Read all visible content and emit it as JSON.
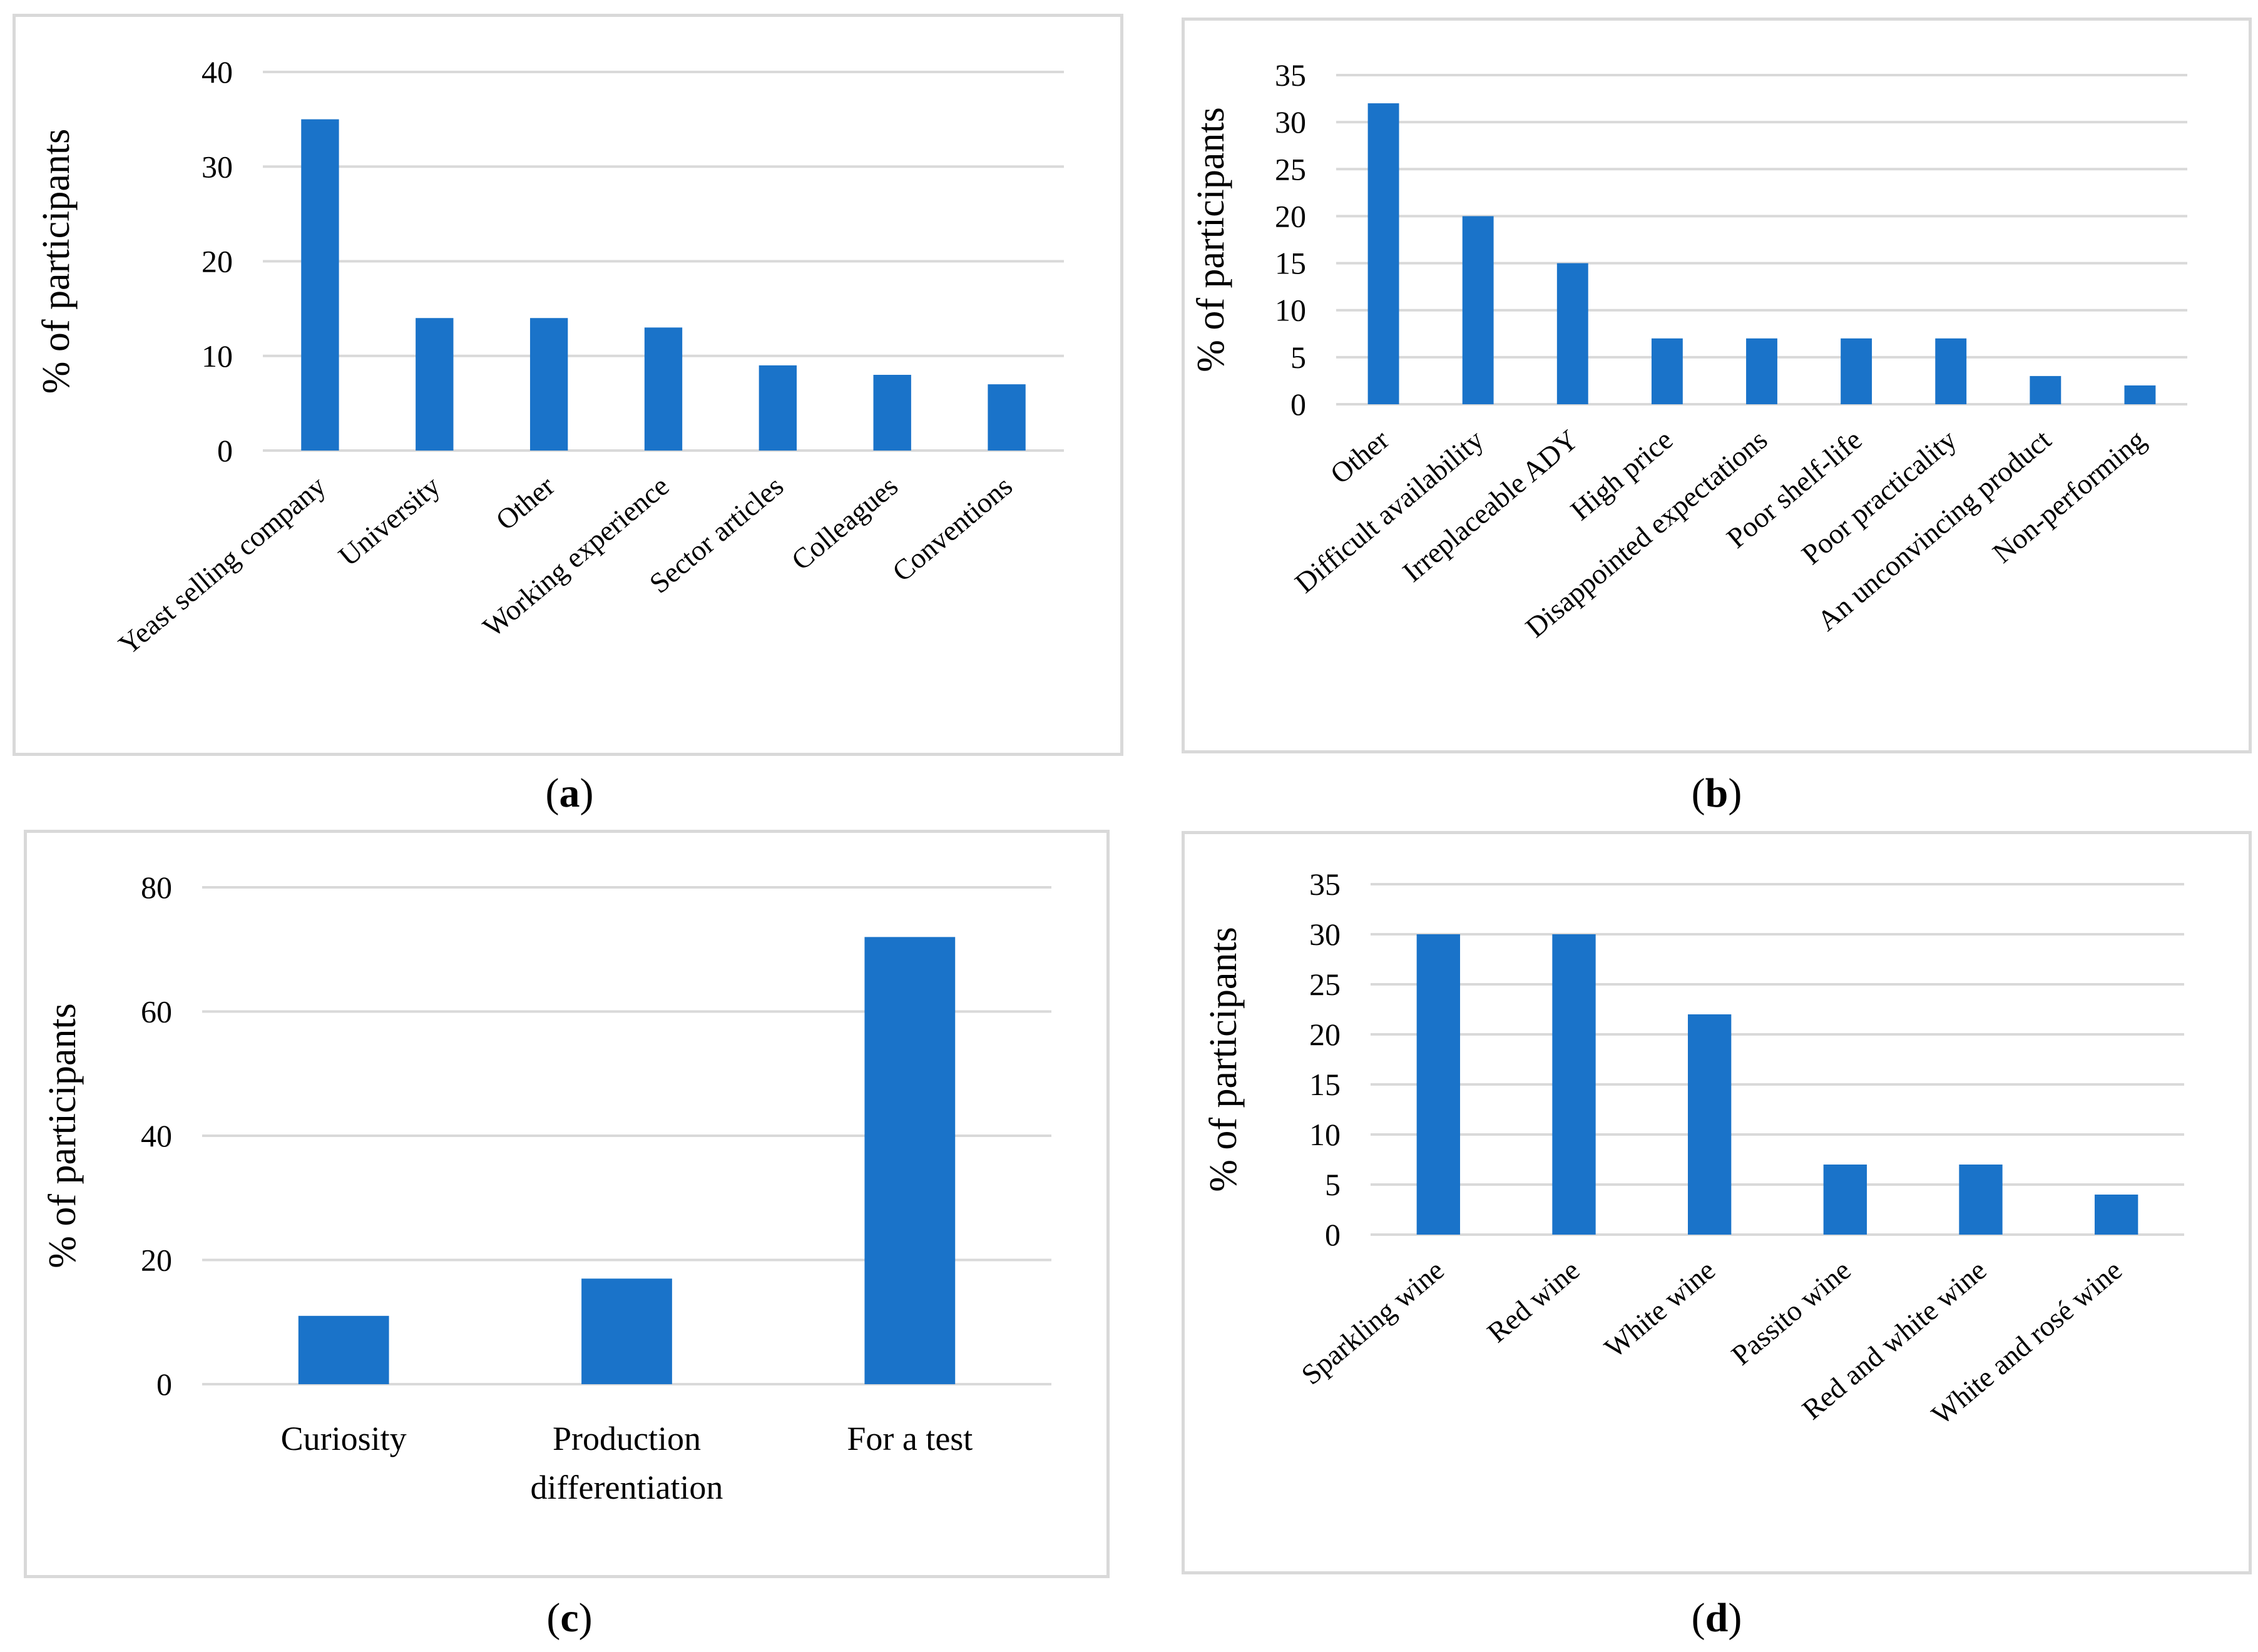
{
  "colors": {
    "bar": "#1a73c9",
    "grid": "#d9d9d9",
    "frame": "#d9d9d9"
  },
  "chart_data": [
    {
      "id": "a",
      "panel_label": "a",
      "type": "bar",
      "title": "",
      "xlabel": "",
      "ylabel": "% of participants",
      "ylim": [
        0,
        40
      ],
      "yticks": [
        0,
        10,
        20,
        30,
        40
      ],
      "grid": true,
      "legend": "none",
      "categories": [
        "Yeast selling company",
        "University",
        "Other",
        "Working experience",
        "Sector articles",
        "Colleagues",
        "Conventions"
      ],
      "values": [
        35,
        14,
        14,
        13,
        9,
        8,
        7
      ]
    },
    {
      "id": "b",
      "panel_label": "b",
      "type": "bar",
      "title": "",
      "xlabel": "",
      "ylabel": "% of participants",
      "ylim": [
        0,
        35
      ],
      "yticks": [
        0,
        5,
        10,
        15,
        20,
        25,
        30,
        35
      ],
      "grid": true,
      "legend": "none",
      "categories": [
        "Other",
        "Difficult availability",
        "Irreplaceable ADY",
        "High price",
        "Disappointed expectations",
        "Poor shelf-life",
        "Poor practicality",
        "An unconvincing product",
        "Non-performing"
      ],
      "values": [
        32,
        20,
        15,
        7,
        7,
        7,
        7,
        3,
        2
      ]
    },
    {
      "id": "c",
      "panel_label": "c",
      "type": "bar",
      "title": "",
      "xlabel": "",
      "ylabel": "% of participants",
      "ylim": [
        0,
        80
      ],
      "yticks": [
        0,
        20,
        40,
        60,
        80
      ],
      "grid": true,
      "legend": "none",
      "categories": [
        "Curiosity",
        "Production differentiation",
        "For a test"
      ],
      "values": [
        11,
        17,
        72
      ]
    },
    {
      "id": "d",
      "panel_label": "d",
      "type": "bar",
      "title": "",
      "xlabel": "",
      "ylabel": "% of participants",
      "ylim": [
        0,
        35
      ],
      "yticks": [
        0,
        5,
        10,
        15,
        20,
        25,
        30,
        35
      ],
      "grid": true,
      "legend": "none",
      "categories": [
        "Sparkling wine",
        "Red wine",
        "White wine",
        "Passito wine",
        "Red and white wine",
        "White and rosé wine"
      ],
      "values": [
        30,
        30,
        22,
        7,
        7,
        4
      ]
    }
  ]
}
